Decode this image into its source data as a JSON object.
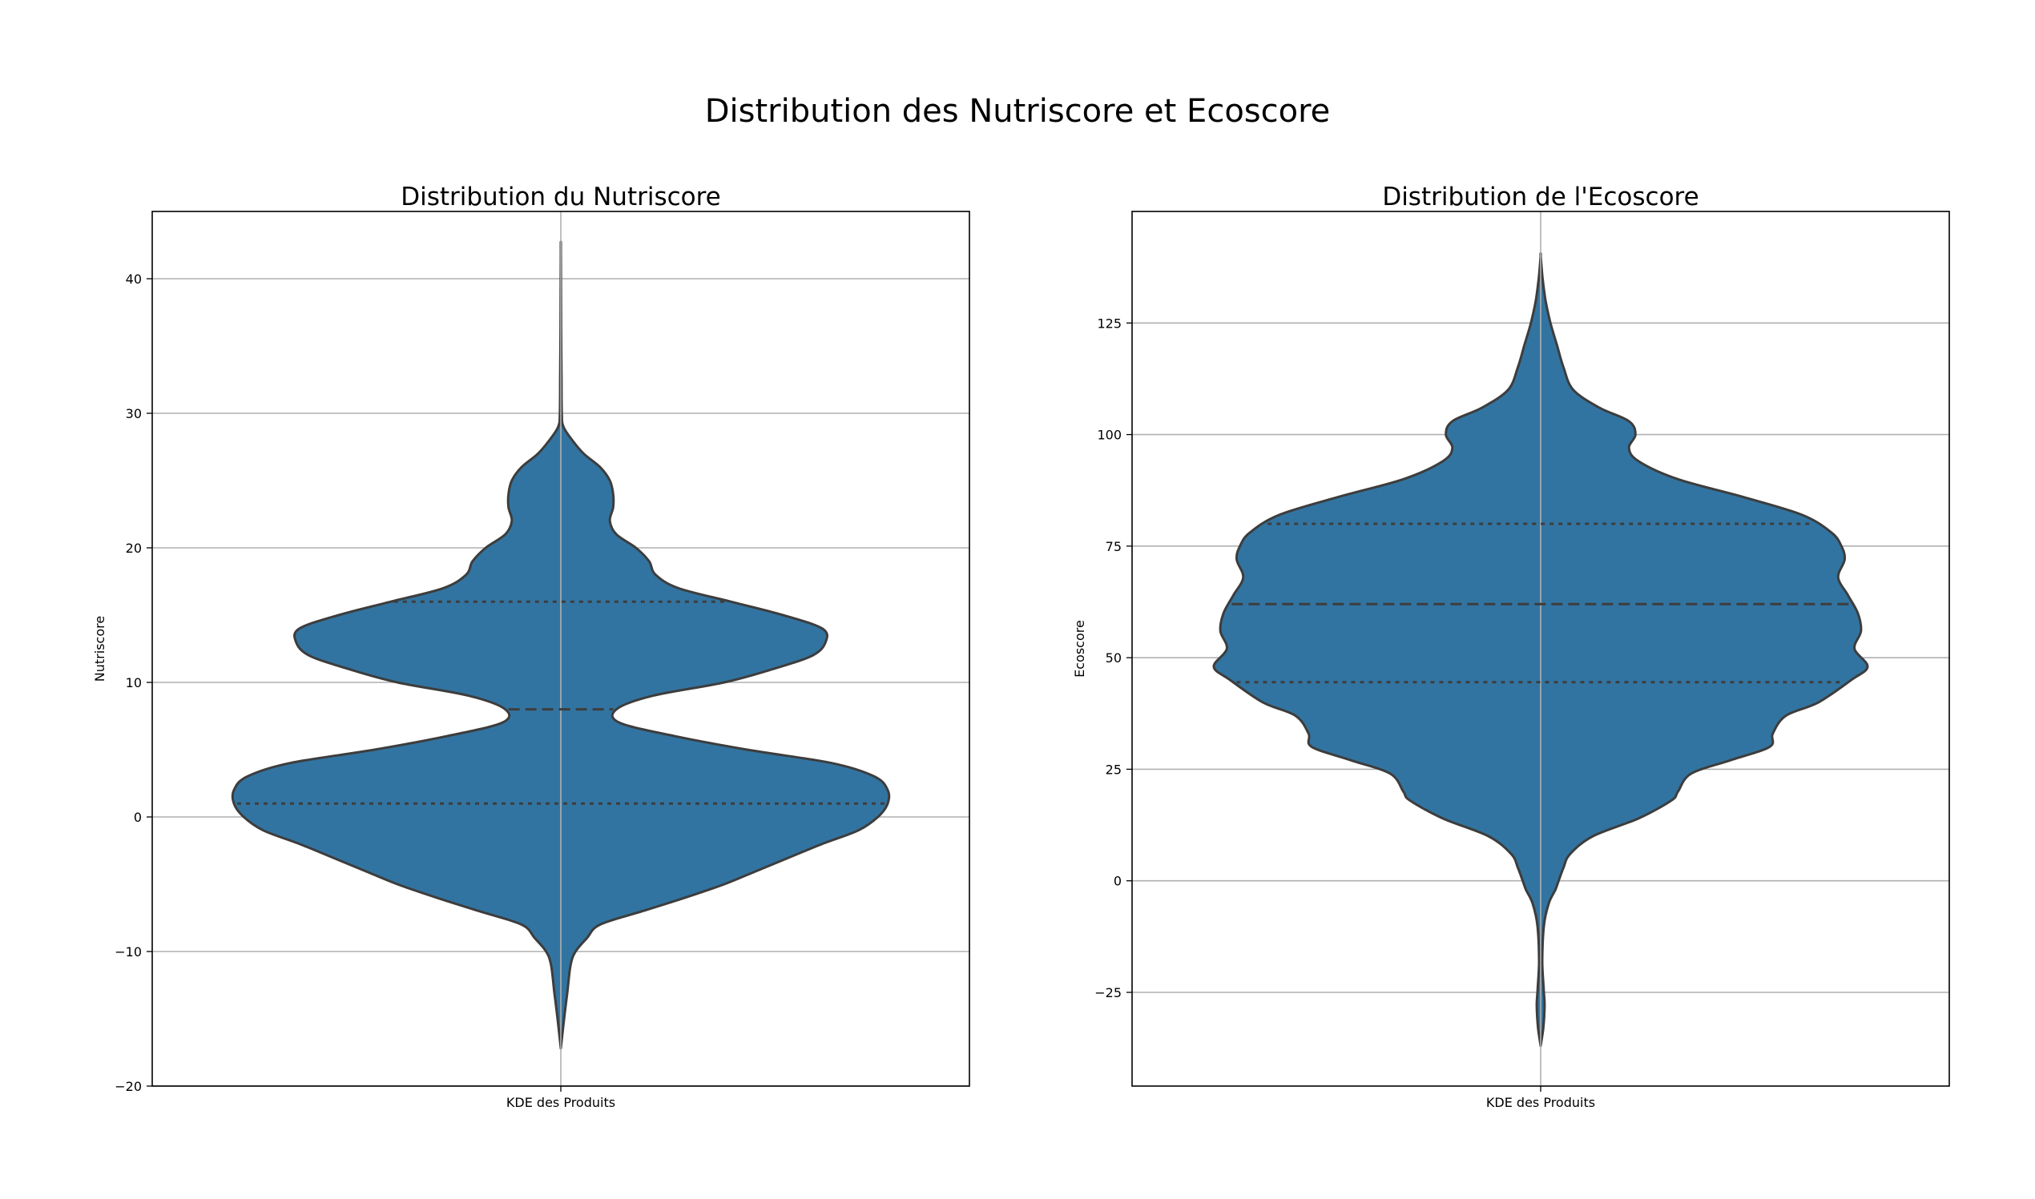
{
  "figure": {
    "title": "Distribution des Nutriscore et Ecoscore",
    "violin_color": "#3274a1",
    "edge_color": "#3d3d3d",
    "grid_color": "#b0b0b0"
  },
  "chart_data": [
    {
      "type": "violin",
      "title": "Distribution du Nutriscore",
      "xlabel": "",
      "ylabel": "Nutriscore",
      "categories": [
        "KDE des Produits"
      ],
      "ylim": [
        -20,
        45
      ],
      "yticks": [
        -20,
        -10,
        0,
        10,
        20,
        30,
        40
      ],
      "ytick_labels": [
        "−20",
        "−10",
        "0",
        "10",
        "20",
        "30",
        "40"
      ],
      "grid": true,
      "quartiles": {
        "q1": 1,
        "median": 8,
        "q3": 16
      },
      "density_profile": [
        [
          -17.2,
          0.0
        ],
        [
          -15,
          0.01
        ],
        [
          -13,
          0.02
        ],
        [
          -11,
          0.03
        ],
        [
          -10,
          0.045
        ],
        [
          -9,
          0.08
        ],
        [
          -8,
          0.12
        ],
        [
          -7,
          0.25
        ],
        [
          -6,
          0.38
        ],
        [
          -5,
          0.5
        ],
        [
          -4,
          0.6
        ],
        [
          -3,
          0.7
        ],
        [
          -2,
          0.8
        ],
        [
          -1,
          0.91
        ],
        [
          0,
          0.97
        ],
        [
          1,
          1.0
        ],
        [
          2,
          1.0
        ],
        [
          3,
          0.96
        ],
        [
          4,
          0.83
        ],
        [
          5,
          0.57
        ],
        [
          6,
          0.35
        ],
        [
          7,
          0.18
        ],
        [
          8,
          0.17
        ],
        [
          9,
          0.28
        ],
        [
          10,
          0.5
        ],
        [
          11,
          0.65
        ],
        [
          12,
          0.77
        ],
        [
          13,
          0.81
        ],
        [
          14,
          0.8
        ],
        [
          15,
          0.68
        ],
        [
          16,
          0.52
        ],
        [
          17,
          0.36
        ],
        [
          18,
          0.29
        ],
        [
          19,
          0.27
        ],
        [
          20,
          0.23
        ],
        [
          21,
          0.17
        ],
        [
          22,
          0.15
        ],
        [
          23,
          0.16
        ],
        [
          24,
          0.16
        ],
        [
          25,
          0.15
        ],
        [
          26,
          0.12
        ],
        [
          27,
          0.07
        ],
        [
          28,
          0.035
        ],
        [
          29,
          0.008
        ],
        [
          30,
          0.003
        ],
        [
          33,
          0.002
        ],
        [
          36,
          0.001
        ],
        [
          42,
          0.0
        ]
      ]
    },
    {
      "type": "violin",
      "title": "Distribution de l'Ecoscore",
      "xlabel": "",
      "ylabel": "Ecoscore",
      "categories": [
        "KDE des Produits"
      ],
      "ylim": [
        -46,
        150
      ],
      "yticks": [
        -25,
        0,
        25,
        50,
        75,
        100,
        125
      ],
      "ytick_labels": [
        "−25",
        "0",
        "25",
        "50",
        "75",
        "100",
        "125"
      ],
      "grid": true,
      "quartiles": {
        "q1": 44.5,
        "median": 62,
        "q3": 80
      },
      "density_profile": [
        [
          -37,
          0.0
        ],
        [
          -33,
          0.008
        ],
        [
          -28,
          0.012
        ],
        [
          -24,
          0.009
        ],
        [
          -18,
          0.005
        ],
        [
          -10,
          0.01
        ],
        [
          -5,
          0.025
        ],
        [
          -2,
          0.045
        ],
        [
          0,
          0.055
        ],
        [
          3,
          0.07
        ],
        [
          6,
          0.09
        ],
        [
          10,
          0.16
        ],
        [
          14,
          0.3
        ],
        [
          18,
          0.4
        ],
        [
          20,
          0.42
        ],
        [
          24,
          0.46
        ],
        [
          27,
          0.58
        ],
        [
          30,
          0.7
        ],
        [
          33,
          0.71
        ],
        [
          37,
          0.75
        ],
        [
          40,
          0.85
        ],
        [
          45,
          0.95
        ],
        [
          48,
          1.0
        ],
        [
          52,
          0.96
        ],
        [
          56,
          0.98
        ],
        [
          60,
          0.97
        ],
        [
          64,
          0.94
        ],
        [
          68,
          0.91
        ],
        [
          72,
          0.93
        ],
        [
          75,
          0.92
        ],
        [
          78,
          0.89
        ],
        [
          82,
          0.8
        ],
        [
          86,
          0.62
        ],
        [
          90,
          0.42
        ],
        [
          94,
          0.3
        ],
        [
          97,
          0.27
        ],
        [
          100,
          0.29
        ],
        [
          103,
          0.27
        ],
        [
          106,
          0.18
        ],
        [
          110,
          0.1
        ],
        [
          115,
          0.07
        ],
        [
          120,
          0.05
        ],
        [
          125,
          0.03
        ],
        [
          130,
          0.015
        ],
        [
          135,
          0.006
        ],
        [
          140,
          0.0
        ]
      ]
    }
  ]
}
